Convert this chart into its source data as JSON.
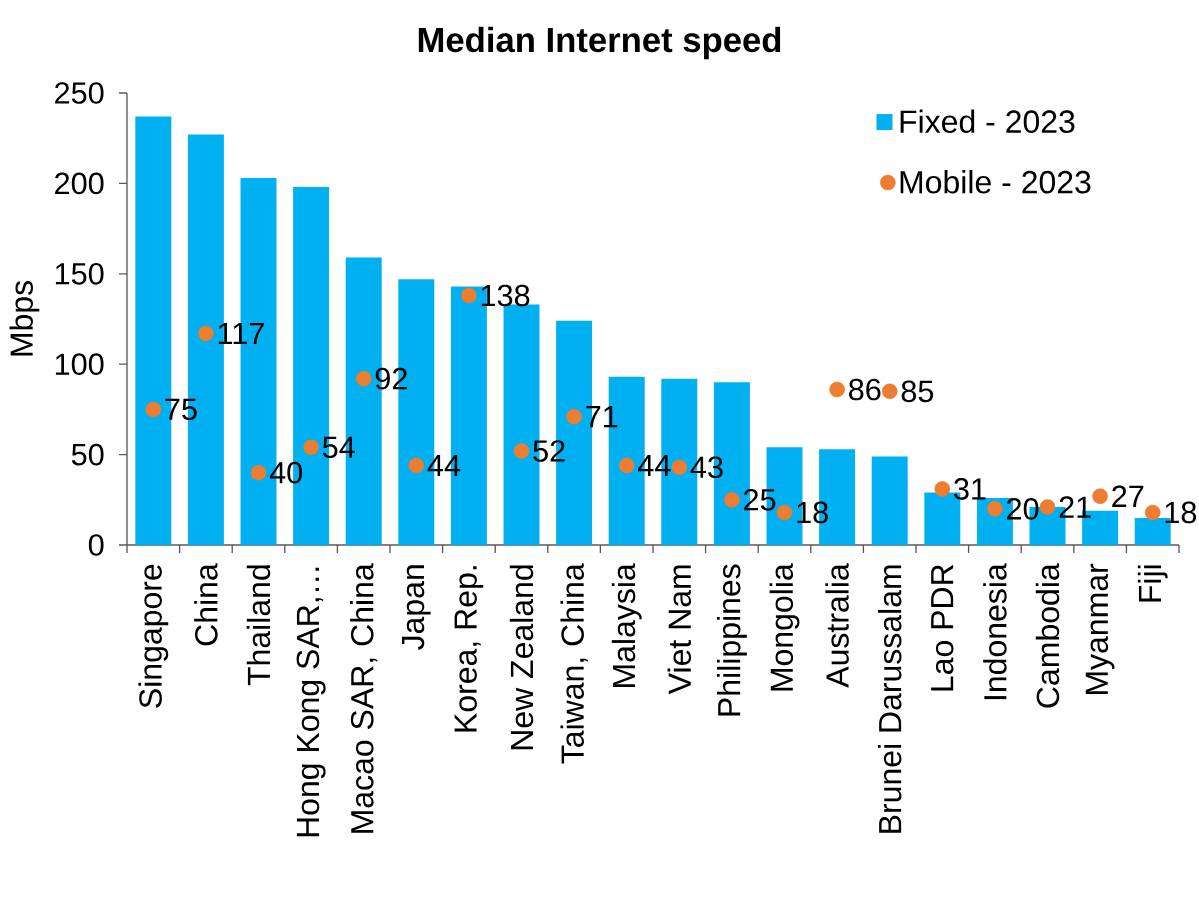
{
  "chart_data": {
    "type": "bar",
    "title": "Median Internet speed",
    "ylabel": "Mbps",
    "categories": [
      "Singapore",
      "China",
      "Thailand",
      "Hong Kong SAR,…",
      "Macao SAR, China",
      "Japan",
      "Korea, Rep.",
      "New Zealand",
      "Taiwan, China",
      "Malaysia",
      "Viet Nam",
      "Philippines",
      "Mongolia",
      "Australia",
      "Brunei Darussalam",
      "Lao PDR",
      "Indonesia",
      "Cambodia",
      "Myanmar",
      "Fiji"
    ],
    "series": [
      {
        "name": "Fixed - 2023",
        "color": "#00b0f0",
        "values": [
          237,
          227,
          203,
          198,
          159,
          147,
          143,
          133,
          124,
          93,
          92,
          90,
          54,
          53,
          49,
          29,
          26,
          21,
          19,
          15
        ]
      },
      {
        "name": "Mobile - 2023",
        "type": "scatter",
        "color": "#ed7d31",
        "values": [
          75,
          117,
          40,
          54,
          92,
          44,
          138,
          52,
          71,
          44,
          43,
          25,
          18,
          86,
          85,
          31,
          20,
          21,
          27,
          18
        ],
        "value_labels": [
          "75",
          "117",
          "40",
          "54",
          "92",
          "44",
          "138",
          "52",
          "71",
          "44",
          "43",
          "25",
          "18",
          "86",
          "85",
          "31",
          "20",
          "21",
          "27",
          "18"
        ]
      }
    ],
    "ylim": [
      0,
      250
    ],
    "yticks": [
      0,
      50,
      100,
      150,
      200,
      250
    ],
    "legend": "top right",
    "marker": "circle"
  }
}
